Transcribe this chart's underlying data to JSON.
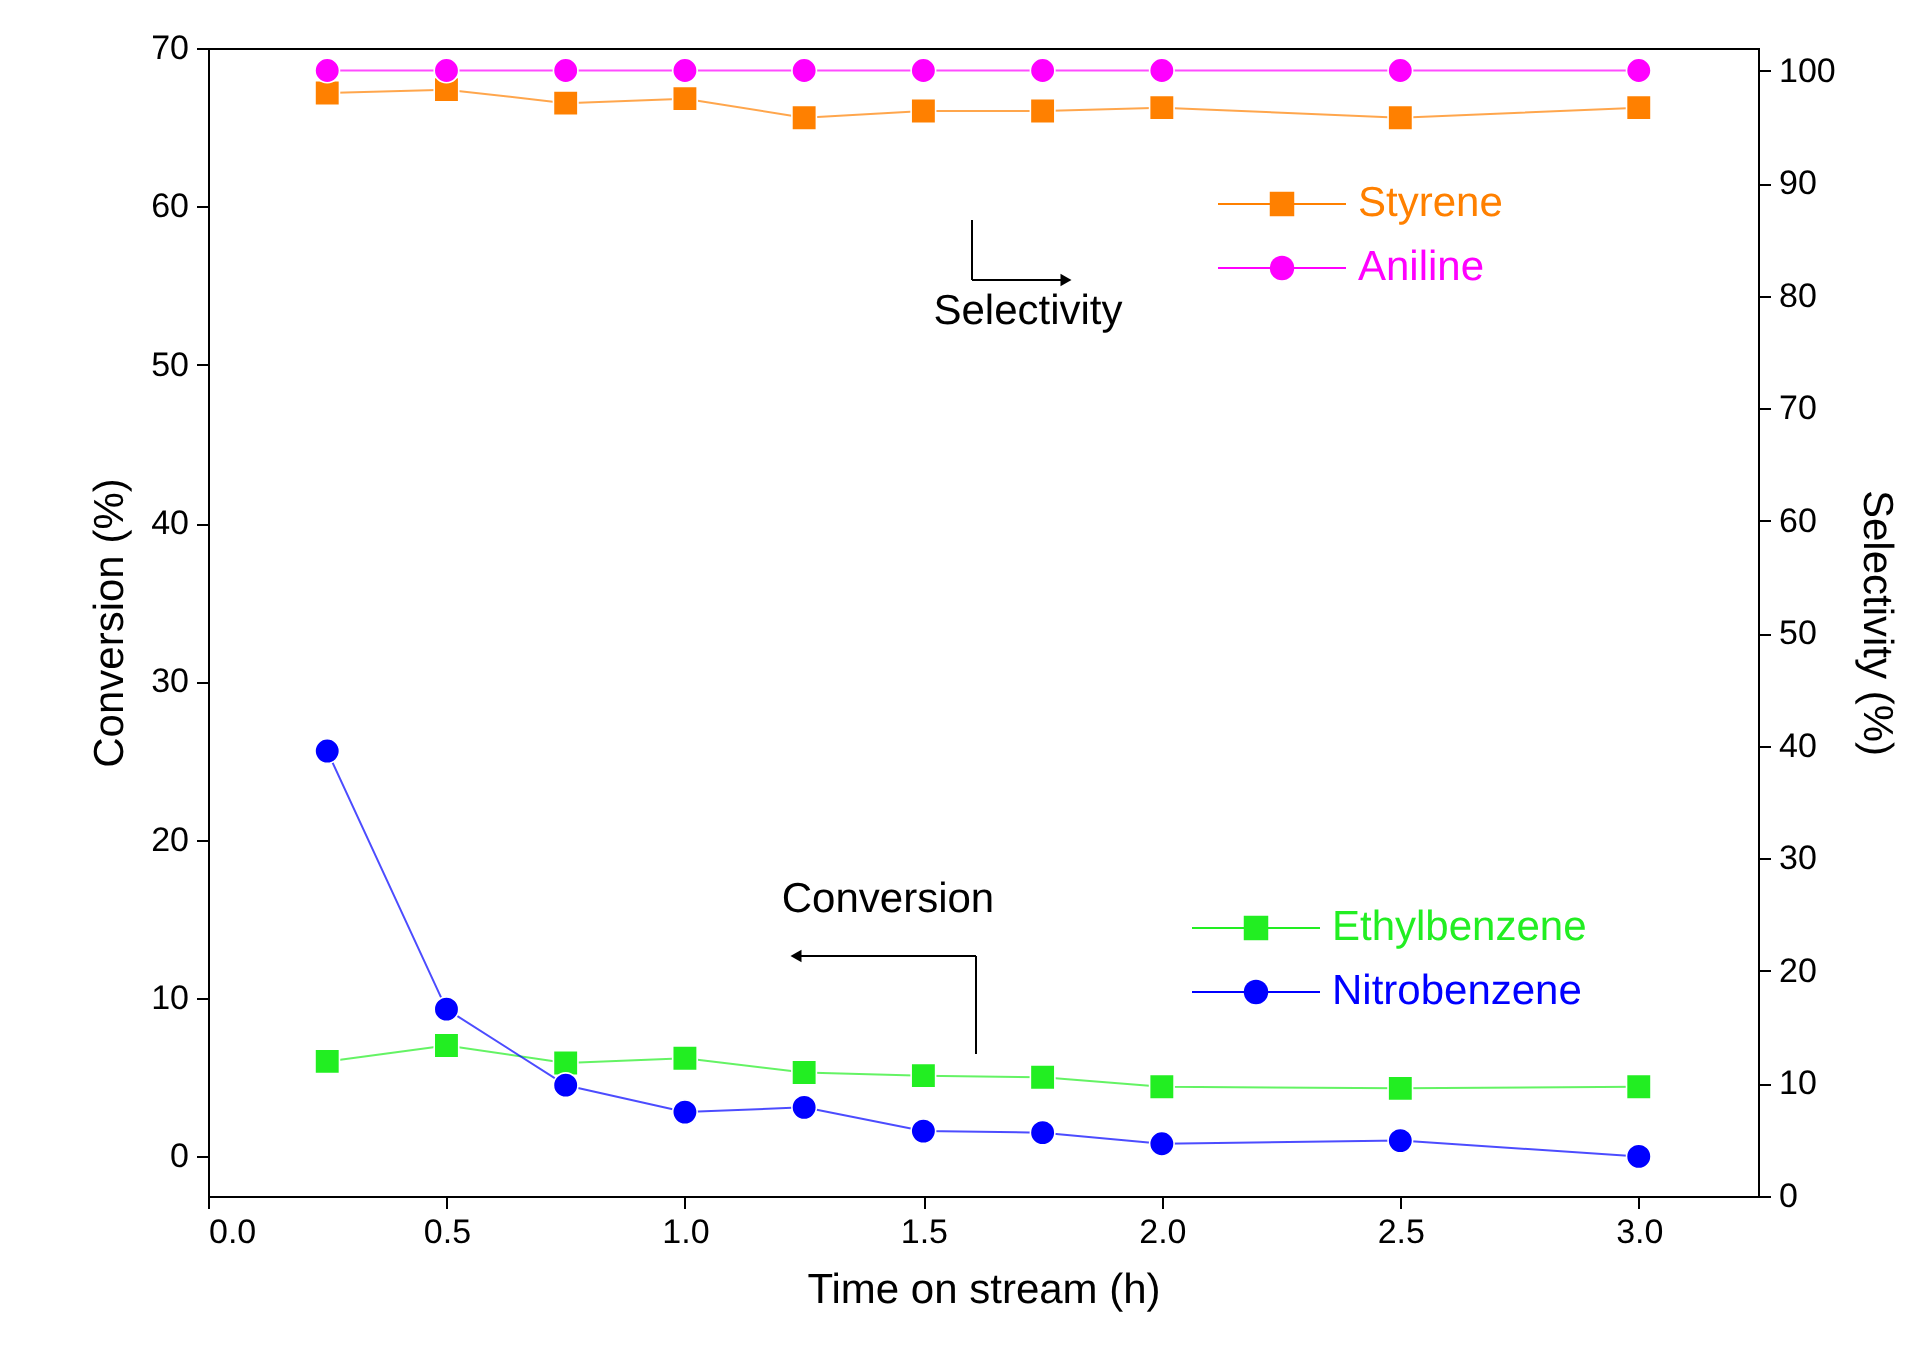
{
  "chart_data": {
    "type": "line",
    "xlabel": "Time on stream (h)",
    "ylabel": "Conversion (%)",
    "y2label": "Selectivity (%)",
    "x": [
      0.25,
      0.5,
      0.75,
      1.0,
      1.25,
      1.5,
      1.75,
      2.0,
      2.5,
      3.0
    ],
    "xlim": [
      0,
      3.25
    ],
    "xticks": [
      {
        "value": 0,
        "label": "0.0"
      },
      0.5,
      {
        "value": 1,
        "label": "1.0"
      },
      1.5,
      {
        "value": 2,
        "label": "2.0"
      },
      2.5,
      {
        "value": 3,
        "label": "3.0"
      }
    ],
    "ylim": [
      -2.5,
      70
    ],
    "yticks": [
      0,
      10,
      20,
      30,
      40,
      50,
      60,
      70
    ],
    "y2lim": [
      0,
      102
    ],
    "y2ticks": [
      0,
      10,
      20,
      30,
      40,
      50,
      60,
      70,
      80,
      90,
      100
    ],
    "legend": "right",
    "series": [
      {
        "name": "Styrene",
        "color": "#ff8000",
        "axis": "y2",
        "marker": "square",
        "values": [
          98.0,
          98.3,
          97.1,
          97.5,
          95.8,
          96.4,
          96.4,
          96.7,
          95.8,
          96.7
        ]
      },
      {
        "name": "Aniline",
        "color": "#ff00ff",
        "axis": "y2",
        "marker": "circle",
        "values": [
          100,
          100,
          100,
          100,
          100,
          100,
          100,
          100,
          100,
          100
        ]
      },
      {
        "name": "Ethylbenzene",
        "color": "#22ee22",
        "marker": "square",
        "values": [
          6.0,
          7.0,
          5.9,
          6.2,
          5.3,
          5.1,
          5.0,
          4.4,
          4.3,
          4.4
        ]
      },
      {
        "name": "Nitrobenzene",
        "color": "#0000ff",
        "marker": "circle",
        "values": [
          25.6,
          9.3,
          4.5,
          2.8,
          3.1,
          1.6,
          1.5,
          0.8,
          1.0,
          0.0
        ]
      }
    ],
    "annotations": [
      "Selectivity",
      "Conversion"
    ]
  }
}
